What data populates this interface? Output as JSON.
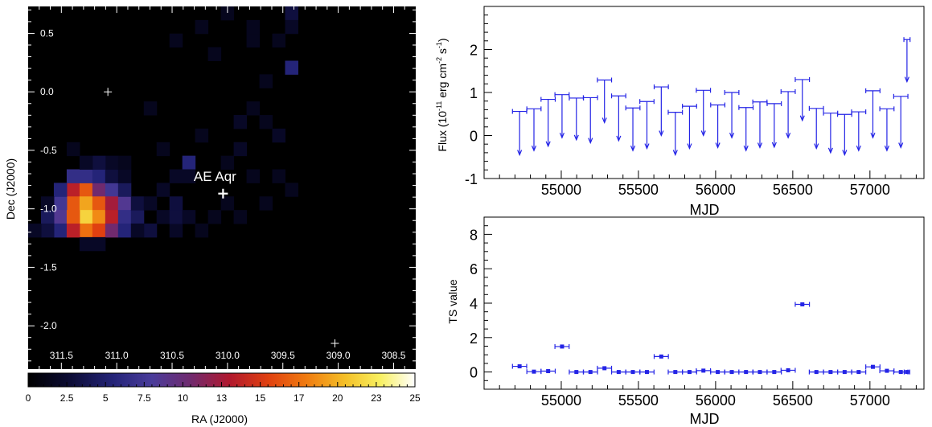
{
  "chart_data": [
    {
      "type": "heatmap",
      "ylabel": "Dec (J2000)",
      "xlabel": "RA (J2000)",
      "xlim": [
        311.8,
        308.3
      ],
      "ylim": [
        -2.37,
        0.73
      ],
      "x_ticks": [
        "311.5",
        "311.0",
        "310.5",
        "310.0",
        "309.5",
        "309.0",
        "308.5"
      ],
      "x_tick_values": [
        311.5,
        311.0,
        310.5,
        310.0,
        309.5,
        309.0,
        308.5
      ],
      "y_ticks": [
        "0.5",
        "0.0",
        "-0.5",
        "-1.0",
        "-1.5",
        "-2.0"
      ],
      "y_tick_values": [
        0.5,
        0.0,
        -0.5,
        -1.0,
        -1.5,
        -2.0
      ],
      "source": {
        "label": "AE Aqr",
        "ra": 310.04,
        "dec": -0.87
      },
      "crosses": [
        {
          "ra": 311.08,
          "dec": 0.0
        },
        {
          "ra": 309.03,
          "dec": -2.15
        }
      ],
      "pixel_grid": {
        "ra_start": 311.8,
        "dec_start": 0.73,
        "step": 0.116,
        "cols": 30,
        "rows": 27
      },
      "bright_pixels": [
        [
          3,
          13,
          13
        ],
        [
          3,
          14,
          16
        ],
        [
          4,
          13,
          16
        ],
        [
          4,
          14,
          19
        ],
        [
          4,
          15,
          21
        ],
        [
          4,
          16,
          17
        ],
        [
          5,
          13,
          10
        ],
        [
          5,
          14,
          16
        ],
        [
          5,
          15,
          18
        ],
        [
          5,
          16,
          15
        ],
        [
          6,
          13,
          7
        ],
        [
          6,
          14,
          12
        ],
        [
          6,
          15,
          13
        ],
        [
          6,
          16,
          10
        ],
        [
          7,
          14,
          8
        ],
        [
          7,
          15,
          6
        ],
        [
          7,
          16,
          5
        ],
        [
          2,
          14,
          7
        ],
        [
          2,
          15,
          8
        ],
        [
          2,
          16,
          5
        ],
        [
          3,
          15,
          16
        ],
        [
          3,
          16,
          13
        ],
        [
          4,
          12,
          6
        ],
        [
          5,
          12,
          5
        ],
        [
          3,
          12,
          6
        ],
        [
          2,
          13,
          5
        ],
        [
          6,
          12,
          3
        ],
        [
          7,
          13,
          4
        ],
        [
          8,
          15,
          4
        ],
        [
          8,
          14,
          3
        ],
        [
          9,
          16,
          3
        ],
        [
          10,
          15,
          2
        ],
        [
          9,
          14,
          2
        ],
        [
          1,
          15,
          4
        ],
        [
          1,
          16,
          3
        ],
        [
          0,
          16,
          2
        ],
        [
          6,
          11,
          2
        ],
        [
          5,
          11,
          3
        ],
        [
          4,
          11,
          2
        ],
        [
          1,
          14,
          2
        ],
        [
          8,
          16,
          2
        ],
        [
          11,
          16,
          2
        ],
        [
          10,
          13,
          2
        ],
        [
          11,
          14,
          3
        ],
        [
          11,
          15,
          3
        ],
        [
          12,
          15,
          2
        ],
        [
          7,
          12,
          2
        ],
        [
          5,
          17,
          2
        ],
        [
          4,
          17,
          2
        ],
        [
          12,
          11,
          5
        ],
        [
          12,
          12,
          2
        ],
        [
          11,
          12,
          2
        ],
        [
          20,
          4,
          5
        ],
        [
          20,
          0,
          3
        ],
        [
          20,
          1,
          2
        ],
        [
          19,
          2,
          1.5
        ],
        [
          18,
          5,
          1.5
        ],
        [
          16,
          8,
          2
        ],
        [
          15,
          11,
          1.5
        ],
        [
          17,
          7,
          1.5
        ],
        [
          16,
          10,
          2
        ],
        [
          14,
          3,
          1.5
        ],
        [
          13,
          1,
          1.5
        ],
        [
          9,
          7,
          1.5
        ],
        [
          7,
          11,
          1.5
        ],
        [
          3,
          10,
          1.5
        ],
        [
          10,
          10,
          1.5
        ],
        [
          13,
          9,
          1.5
        ],
        [
          19,
          9,
          2
        ],
        [
          17,
          12,
          1.5
        ],
        [
          15,
          14,
          1.5
        ],
        [
          14,
          15,
          1.5
        ],
        [
          16,
          15,
          1.5
        ],
        [
          18,
          14,
          1.5
        ],
        [
          20,
          13,
          1.5
        ],
        [
          19,
          12,
          1.5
        ],
        [
          13,
          16,
          1.5
        ],
        [
          11,
          2,
          1.5
        ],
        [
          17,
          2,
          1.5
        ],
        [
          17,
          1,
          1.5
        ],
        [
          15,
          0,
          1.5
        ],
        [
          18,
          8,
          1.5
        ]
      ]
    },
    {
      "type": "colorbar",
      "ticks": [
        "0",
        "2.5",
        "5",
        "7.5",
        "10",
        "13",
        "15",
        "17",
        "20",
        "23",
        "25"
      ],
      "tick_values": [
        0,
        2.5,
        5,
        7.5,
        10,
        12.5,
        15,
        17.5,
        20,
        22.5,
        25
      ],
      "range": [
        0,
        25
      ]
    },
    {
      "type": "scatter",
      "style": "upper-limits",
      "xlabel": "MJD",
      "ylabel_main": "Flux (10",
      "ylabel_exp1": "-11",
      "ylabel_mid": " erg cm",
      "ylabel_exp2": "-2",
      "ylabel_mid2": " s",
      "ylabel_exp3": "-1",
      "ylabel_end": ")",
      "xlim": [
        54500,
        57350
      ],
      "ylim": [
        -1,
        3
      ],
      "x_ticks": [
        "55000",
        "55500",
        "56000",
        "56500",
        "57000"
      ],
      "x_tick_values": [
        55000,
        55500,
        56000,
        56500,
        57000
      ],
      "y_ticks": [
        "-1",
        "0",
        "1",
        "2"
      ],
      "y_tick_values": [
        -1,
        0,
        1,
        2
      ],
      "x": [
        54730,
        54823,
        54915,
        55005,
        55098,
        55189,
        55280,
        55372,
        55464,
        55555,
        55648,
        55739,
        55831,
        55921,
        56014,
        56105,
        56197,
        56287,
        56380,
        56470,
        56562,
        56653,
        56745,
        56836,
        56927,
        57019,
        57110,
        57200
      ],
      "xerr": 46,
      "upper_limits": [
        0.56,
        0.62,
        0.84,
        0.95,
        0.87,
        0.88,
        1.29,
        0.92,
        0.64,
        0.79,
        1.13,
        0.54,
        0.68,
        1.05,
        0.71,
        1.0,
        0.65,
        0.78,
        0.74,
        1.02,
        1.3,
        0.63,
        0.52,
        0.49,
        0.55,
        1.04,
        0.62,
        0.91
      ],
      "arrow_to": [
        -0.45,
        -0.35,
        -0.25,
        -0.05,
        -0.1,
        -0.17,
        0.3,
        -0.12,
        -0.35,
        -0.3,
        0.0,
        -0.45,
        -0.3,
        0.0,
        -0.28,
        -0.05,
        -0.35,
        -0.28,
        -0.27,
        -0.05,
        0.35,
        -0.3,
        -0.4,
        -0.45,
        -0.35,
        -0.05,
        -0.35,
        -0.28
      ],
      "last_point": {
        "x": 57240,
        "upper_limit": 2.23,
        "arrow_to": 1.25
      }
    },
    {
      "type": "scatter",
      "xlabel": "MJD",
      "ylabel": "TS value",
      "xlim": [
        54500,
        57350
      ],
      "ylim": [
        -1,
        9
      ],
      "x_ticks": [
        "55000",
        "55500",
        "56000",
        "56500",
        "57000"
      ],
      "x_tick_values": [
        55000,
        55500,
        56000,
        56500,
        57000
      ],
      "y_ticks": [
        "0",
        "2",
        "4",
        "6",
        "8"
      ],
      "y_tick_values": [
        0,
        2,
        4,
        6,
        8
      ],
      "x": [
        54730,
        54823,
        54915,
        55005,
        55098,
        55189,
        55280,
        55372,
        55464,
        55555,
        55648,
        55739,
        55831,
        55921,
        56014,
        56105,
        56197,
        56287,
        56380,
        56470,
        56562,
        56653,
        56745,
        56836,
        56927,
        57019,
        57110,
        57200,
        57240
      ],
      "values": [
        0.33,
        0.02,
        0.05,
        1.48,
        0.0,
        0.0,
        0.22,
        0.0,
        0.0,
        0.0,
        0.9,
        0.0,
        0.0,
        0.08,
        0.0,
        0.0,
        0.0,
        0.0,
        0.0,
        0.1,
        3.93,
        0.0,
        0.0,
        0.0,
        0.0,
        0.3,
        0.07,
        0.0,
        0.0
      ],
      "xerr": 46
    }
  ]
}
